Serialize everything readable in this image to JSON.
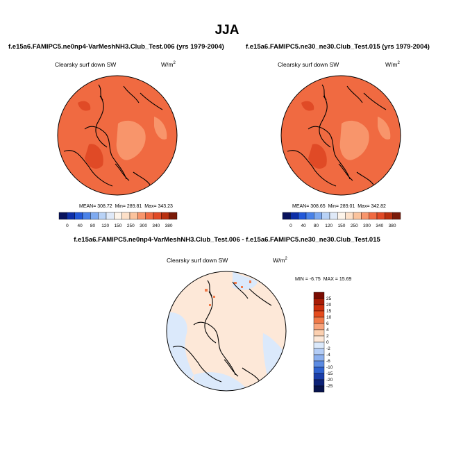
{
  "title": "JJA",
  "panels": [
    {
      "case": "f.e15a6.FAMIPC5.ne0np4-VarMeshNH3.Club_Test.006 (yrs 1979-2004)",
      "variable": "Clearsky surf down SW",
      "units_base": "W/m",
      "units_exp": "2",
      "mean_label": "MEAN=",
      "mean": "308.72",
      "min_label": "Min=",
      "min": "289.81",
      "max_label": "Max=",
      "max": "343.23"
    },
    {
      "case": "f.e15a6.FAMIPC5.ne30_ne30.Club_Test.015 (yrs 1979-2004)",
      "variable": "Clearsky surf down SW",
      "units_base": "W/m",
      "units_exp": "2",
      "mean_label": "MEAN=",
      "mean": "308.65",
      "min_label": "Min=",
      "min": "289.01",
      "max_label": "Max=",
      "max": "342.82"
    }
  ],
  "diff": {
    "title": "f.e15a6.FAMIPC5.ne0np4-VarMeshNH3.Club_Test.006 - f.e15a6.FAMIPC5.ne30_ne30.Club_Test.015",
    "variable": "Clearsky surf down SW",
    "units_base": "W/m",
    "units_exp": "2",
    "min_label": "MIN =",
    "min": "-6.75",
    "max_label": "MAX =",
    "max": "15.69"
  },
  "colorbar_abs": {
    "labels": [
      "0",
      "40",
      "80",
      "120",
      "150",
      "250",
      "300",
      "340",
      "380"
    ],
    "colors": [
      "#08125c",
      "#0d2fa8",
      "#2258d8",
      "#4a82e8",
      "#7eaaf0",
      "#b8d2f6",
      "#dfe9f8",
      "#fdf4ea",
      "#fde0c8",
      "#fbc39d",
      "#f8956b",
      "#f06a41",
      "#e04a26",
      "#b8300f",
      "#7a1a08"
    ]
  },
  "colorbar_diff": {
    "labels": [
      "25",
      "20",
      "15",
      "10",
      "6",
      "4",
      "2",
      "0",
      "-2",
      "-4",
      "-6",
      "-10",
      "-15",
      "-20",
      "-25"
    ],
    "colors": [
      "#7a0c02",
      "#a81c06",
      "#cc2e0c",
      "#e44c1e",
      "#f07a4a",
      "#f8a47c",
      "#fcd0b0",
      "#fde8d8",
      "#dbe9fb",
      "#b4cdf6",
      "#8cb0ee",
      "#5c8be2",
      "#2f62cf",
      "#1a3da8",
      "#0d2277",
      "#07134c"
    ]
  },
  "map_colors": {
    "field": "#f06a41",
    "light": "#f8956b",
    "warm": "#e04a26",
    "diff_base": "#fde8d8",
    "diff_blue": "#dbe9fb",
    "diff_red": "#f07a4a",
    "coast": "#000000"
  }
}
